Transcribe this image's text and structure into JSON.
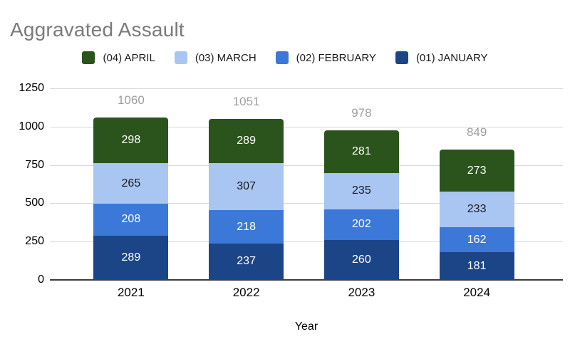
{
  "chart_data": {
    "type": "bar",
    "stacked": true,
    "title": "Aggravated Assault",
    "xlabel": "Year",
    "ylabel": "",
    "ylim": [
      0,
      1250
    ],
    "yticks": [
      0,
      250,
      500,
      750,
      1000,
      1250
    ],
    "grid": true,
    "legend_position": "top",
    "categories": [
      "2021",
      "2022",
      "2023",
      "2024"
    ],
    "series": [
      {
        "name": "(01) JANUARY",
        "color": "#1c4587",
        "label_color": "#ffffff",
        "values": [
          289,
          237,
          260,
          181
        ]
      },
      {
        "name": "(02) FEBRUARY",
        "color": "#3b78d8",
        "label_color": "#ffffff",
        "values": [
          208,
          218,
          202,
          162
        ]
      },
      {
        "name": "(03) MARCH",
        "color": "#a9c5f2",
        "label_color": "#1a1a1a",
        "values": [
          265,
          307,
          235,
          233
        ]
      },
      {
        "name": "(04) APRIL",
        "color": "#2b541c",
        "label_color": "#ffffff",
        "values": [
          298,
          289,
          281,
          273
        ]
      }
    ],
    "legend_order": [
      "(04) APRIL",
      "(03) MARCH",
      "(02) FEBRUARY",
      "(01) JANUARY"
    ],
    "totals": [
      1060,
      1051,
      978,
      849
    ],
    "colors": {
      "title_text": "#7a7a7a",
      "total_label": "#9e9e9e",
      "gridline": "#d9d9d9",
      "axis_line": "#3c3c3c",
      "background": "#ffffff"
    }
  }
}
